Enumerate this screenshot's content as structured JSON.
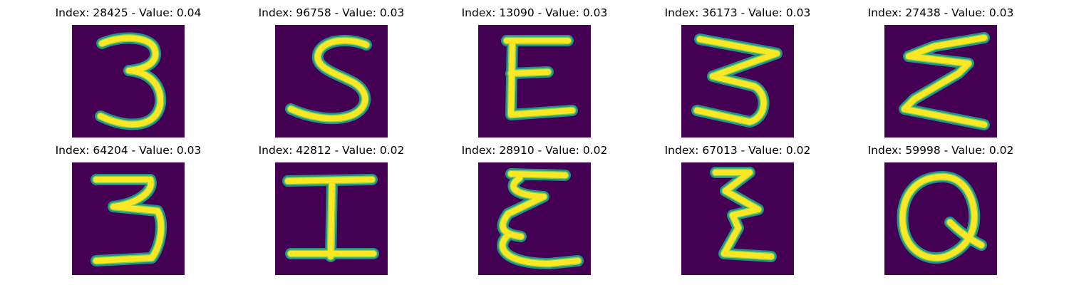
{
  "colors": {
    "background": "#440154",
    "stroke_outer": "#21918c",
    "stroke_mid": "#7ad151",
    "stroke_inner": "#fde725"
  },
  "panels": [
    {
      "index_label": "Index: 28425 - Value: 0.04",
      "glyph": "digit-3"
    },
    {
      "index_label": "Index: 96758 - Value: 0.03",
      "glyph": "letter-S"
    },
    {
      "index_label": "Index: 13090 - Value: 0.03",
      "glyph": "letter-E"
    },
    {
      "index_label": "Index: 36173 - Value: 0.03",
      "glyph": "digit-3-zigzag"
    },
    {
      "index_label": "Index: 27438 - Value: 0.03",
      "glyph": "sigma-zigzag"
    },
    {
      "index_label": "Index: 64204 - Value: 0.03",
      "glyph": "digit-3-flat-top"
    },
    {
      "index_label": "Index: 42812 - Value: 0.02",
      "glyph": "letter-I"
    },
    {
      "index_label": "Index: 28910 - Value: 0.02",
      "glyph": "script-E"
    },
    {
      "index_label": "Index: 67013 - Value: 0.02",
      "glyph": "script-Z"
    },
    {
      "index_label": "Index: 59998 - Value: 0.02",
      "glyph": "letter-Q"
    }
  ]
}
